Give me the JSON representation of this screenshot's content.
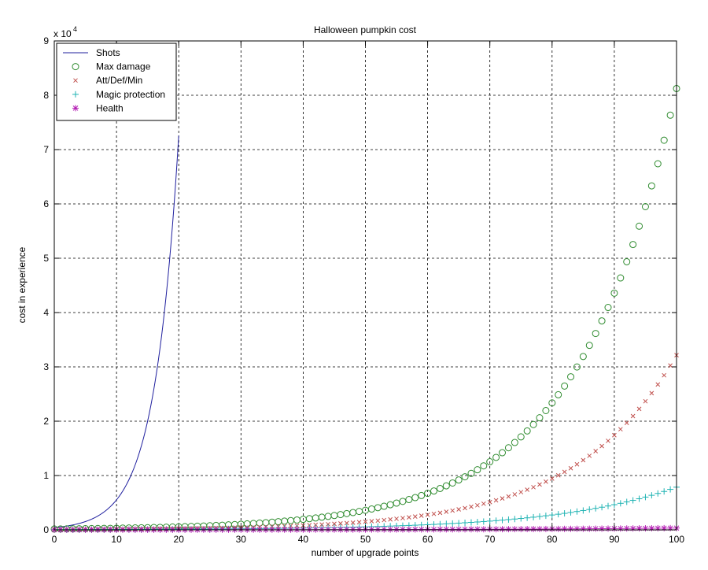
{
  "chart_data": {
    "type": "scatter",
    "title": "Halloween pumpkin cost",
    "xlabel": "number of upgrade points",
    "ylabel": "cost in experience",
    "y_multiplier": "x 10",
    "y_multiplier_exp": "4",
    "xlim": [
      0,
      100
    ],
    "ylim": [
      0,
      90000
    ],
    "x_ticks": [
      "0",
      "10",
      "20",
      "30",
      "40",
      "50",
      "60",
      "70",
      "80",
      "90",
      "100"
    ],
    "y_ticks": [
      "0",
      "1",
      "2",
      "3",
      "4",
      "5",
      "6",
      "7",
      "8",
      "9"
    ],
    "grid": true,
    "legend_position": "top-left",
    "series": [
      {
        "name": "Shots",
        "style": "line",
        "color": "#1f1f9e",
        "model": {
          "a": 420,
          "b": 0.2576,
          "x_from": 0,
          "x_to": 20,
          "step": 0.25
        }
      },
      {
        "name": "Max damage",
        "style": "circle",
        "color": "#2e8b2e",
        "model": {
          "a": 160,
          "b": 0.0623,
          "x_from": 0,
          "x_to": 100,
          "step": 1
        }
      },
      {
        "name": "Att/Def/Min",
        "style": "x",
        "color": "#c0504d",
        "model": {
          "a": 70,
          "b": 0.0613,
          "x_from": 0,
          "x_to": 100,
          "step": 1
        }
      },
      {
        "name": "Magic protection",
        "style": "plus",
        "color": "#1fb3b3",
        "model": {
          "a": 40,
          "b": 0.0528,
          "x_from": 0,
          "x_to": 100,
          "step": 1
        }
      },
      {
        "name": "Health",
        "style": "star",
        "color": "#b41fb4",
        "model": {
          "a": 10,
          "b": 0.035,
          "x_from": 0,
          "x_to": 100,
          "step": 1
        }
      }
    ]
  }
}
